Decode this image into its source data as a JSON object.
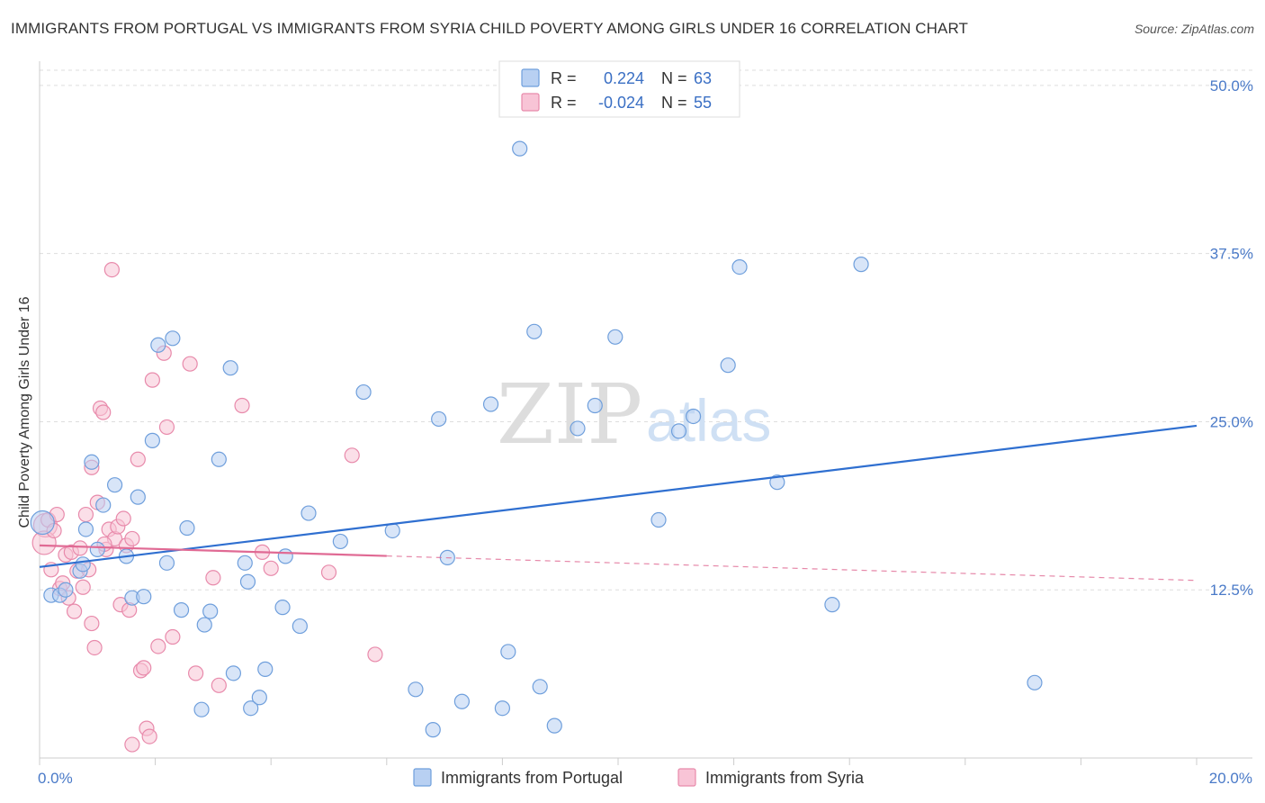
{
  "header": {
    "title": "IMMIGRANTS FROM PORTUGAL VS IMMIGRANTS FROM SYRIA CHILD POVERTY AMONG GIRLS UNDER 16 CORRELATION CHART",
    "source": "Source: ZipAtlas.com"
  },
  "watermark": {
    "zip": "ZIP",
    "atlas": "atlas"
  },
  "legend": {
    "r_label": "R =",
    "n_label": "N =",
    "portugal": {
      "r": "0.224",
      "n": "63"
    },
    "syria": {
      "r": "-0.024",
      "n": "55"
    }
  },
  "colors": {
    "portugal_fill": "#b8d0f2",
    "portugal_stroke": "#6f9fdc",
    "portugal_line": "#2f6fd0",
    "syria_fill": "#f8c4d6",
    "syria_stroke": "#e88aab",
    "syria_line": "#e06a94",
    "grid": "#dddddd",
    "tick_label": "#4a7ac8"
  },
  "chart_data": {
    "type": "scatter",
    "xlabel": "",
    "ylabel": "Child Poverty Among Girls Under 16",
    "xlim": [
      0,
      20
    ],
    "ylim": [
      0,
      52
    ],
    "x_tick_labels": [
      "0.0%",
      "20.0%"
    ],
    "y_ticks": [
      12.5,
      25.0,
      37.5,
      50.0
    ],
    "y_tick_labels": [
      "12.5%",
      "25.0%",
      "37.5%",
      "50.0%"
    ],
    "grid": true,
    "legend_position": "top-center",
    "series": [
      {
        "name": "Immigrants from Portugal",
        "r": 0.224,
        "n": 63,
        "trend": {
          "x0": 0,
          "y0": 14.2,
          "x1": 20,
          "y1": 24.7,
          "dashed_from": null
        },
        "points": [
          [
            0.05,
            17.5
          ],
          [
            0.2,
            12.1
          ],
          [
            0.35,
            12.1
          ],
          [
            0.45,
            12.5
          ],
          [
            0.7,
            13.9
          ],
          [
            0.75,
            14.4
          ],
          [
            0.8,
            17.0
          ],
          [
            0.9,
            22.0
          ],
          [
            1.1,
            18.8
          ],
          [
            1.0,
            15.5
          ],
          [
            1.3,
            20.3
          ],
          [
            1.5,
            15.0
          ],
          [
            1.6,
            11.9
          ],
          [
            1.7,
            19.4
          ],
          [
            1.8,
            12.0
          ],
          [
            1.95,
            23.6
          ],
          [
            2.05,
            30.7
          ],
          [
            2.2,
            14.5
          ],
          [
            2.3,
            31.2
          ],
          [
            2.45,
            11.0
          ],
          [
            2.55,
            17.1
          ],
          [
            2.8,
            3.6
          ],
          [
            2.85,
            9.9
          ],
          [
            2.95,
            10.9
          ],
          [
            3.1,
            22.2
          ],
          [
            3.3,
            29.0
          ],
          [
            3.35,
            6.3
          ],
          [
            3.55,
            14.5
          ],
          [
            3.6,
            13.1
          ],
          [
            3.65,
            3.7
          ],
          [
            3.8,
            4.5
          ],
          [
            3.9,
            6.6
          ],
          [
            4.2,
            11.2
          ],
          [
            4.25,
            15.0
          ],
          [
            4.5,
            9.8
          ],
          [
            4.65,
            18.2
          ],
          [
            5.2,
            16.1
          ],
          [
            5.6,
            27.2
          ],
          [
            6.1,
            16.9
          ],
          [
            6.5,
            5.1
          ],
          [
            6.8,
            2.1
          ],
          [
            6.9,
            25.2
          ],
          [
            7.05,
            14.9
          ],
          [
            7.3,
            4.2
          ],
          [
            7.8,
            26.3
          ],
          [
            8.0,
            3.7
          ],
          [
            8.1,
            7.9
          ],
          [
            8.3,
            45.3
          ],
          [
            8.55,
            31.7
          ],
          [
            8.65,
            5.3
          ],
          [
            8.9,
            2.4
          ],
          [
            9.3,
            24.5
          ],
          [
            9.6,
            26.2
          ],
          [
            9.95,
            31.3
          ],
          [
            10.7,
            17.7
          ],
          [
            11.05,
            24.3
          ],
          [
            11.3,
            25.4
          ],
          [
            11.9,
            29.2
          ],
          [
            12.1,
            36.5
          ],
          [
            12.75,
            20.5
          ],
          [
            13.7,
            11.4
          ],
          [
            14.2,
            36.7
          ],
          [
            17.2,
            5.6
          ]
        ]
      },
      {
        "name": "Immigrants from Syria",
        "r": -0.024,
        "n": 55,
        "trend": {
          "x0": 0,
          "y0": 15.8,
          "x1": 20,
          "y1": 13.2,
          "dashed_from": 6.0
        },
        "points": [
          [
            0.1,
            17.3
          ],
          [
            0.15,
            17.7
          ],
          [
            0.2,
            14.0
          ],
          [
            0.3,
            18.1
          ],
          [
            0.35,
            12.6
          ],
          [
            0.4,
            13.0
          ],
          [
            0.45,
            15.1
          ],
          [
            0.55,
            15.3
          ],
          [
            0.6,
            10.9
          ],
          [
            0.65,
            13.9
          ],
          [
            0.7,
            15.6
          ],
          [
            0.75,
            12.7
          ],
          [
            0.8,
            18.1
          ],
          [
            0.85,
            14.0
          ],
          [
            0.9,
            21.6
          ],
          [
            0.9,
            10.0
          ],
          [
            0.95,
            8.2
          ],
          [
            1.0,
            19.0
          ],
          [
            1.05,
            26.0
          ],
          [
            1.1,
            25.7
          ],
          [
            1.15,
            15.5
          ],
          [
            1.2,
            17.0
          ],
          [
            1.25,
            36.3
          ],
          [
            1.3,
            16.3
          ],
          [
            1.35,
            17.2
          ],
          [
            1.4,
            11.4
          ],
          [
            1.45,
            17.8
          ],
          [
            1.5,
            15.8
          ],
          [
            1.55,
            11.0
          ],
          [
            1.6,
            16.3
          ],
          [
            1.7,
            22.2
          ],
          [
            1.75,
            6.5
          ],
          [
            1.8,
            6.7
          ],
          [
            1.85,
            2.2
          ],
          [
            1.9,
            1.6
          ],
          [
            1.95,
            28.1
          ],
          [
            1.6,
            1.0
          ],
          [
            2.05,
            8.3
          ],
          [
            2.15,
            30.1
          ],
          [
            2.2,
            24.6
          ],
          [
            2.3,
            9.0
          ],
          [
            2.6,
            29.3
          ],
          [
            2.7,
            6.3
          ],
          [
            3.0,
            13.4
          ],
          [
            3.1,
            5.4
          ],
          [
            3.5,
            26.2
          ],
          [
            3.85,
            15.3
          ],
          [
            4.0,
            14.1
          ],
          [
            5.0,
            13.8
          ],
          [
            5.4,
            22.5
          ],
          [
            5.8,
            7.7
          ],
          [
            0.08,
            16.0
          ],
          [
            0.25,
            16.9
          ],
          [
            0.5,
            11.9
          ],
          [
            1.12,
            15.9
          ]
        ]
      }
    ]
  },
  "bottom_legend": {
    "portugal": "Immigrants from Portugal",
    "syria": "Immigrants from Syria"
  }
}
